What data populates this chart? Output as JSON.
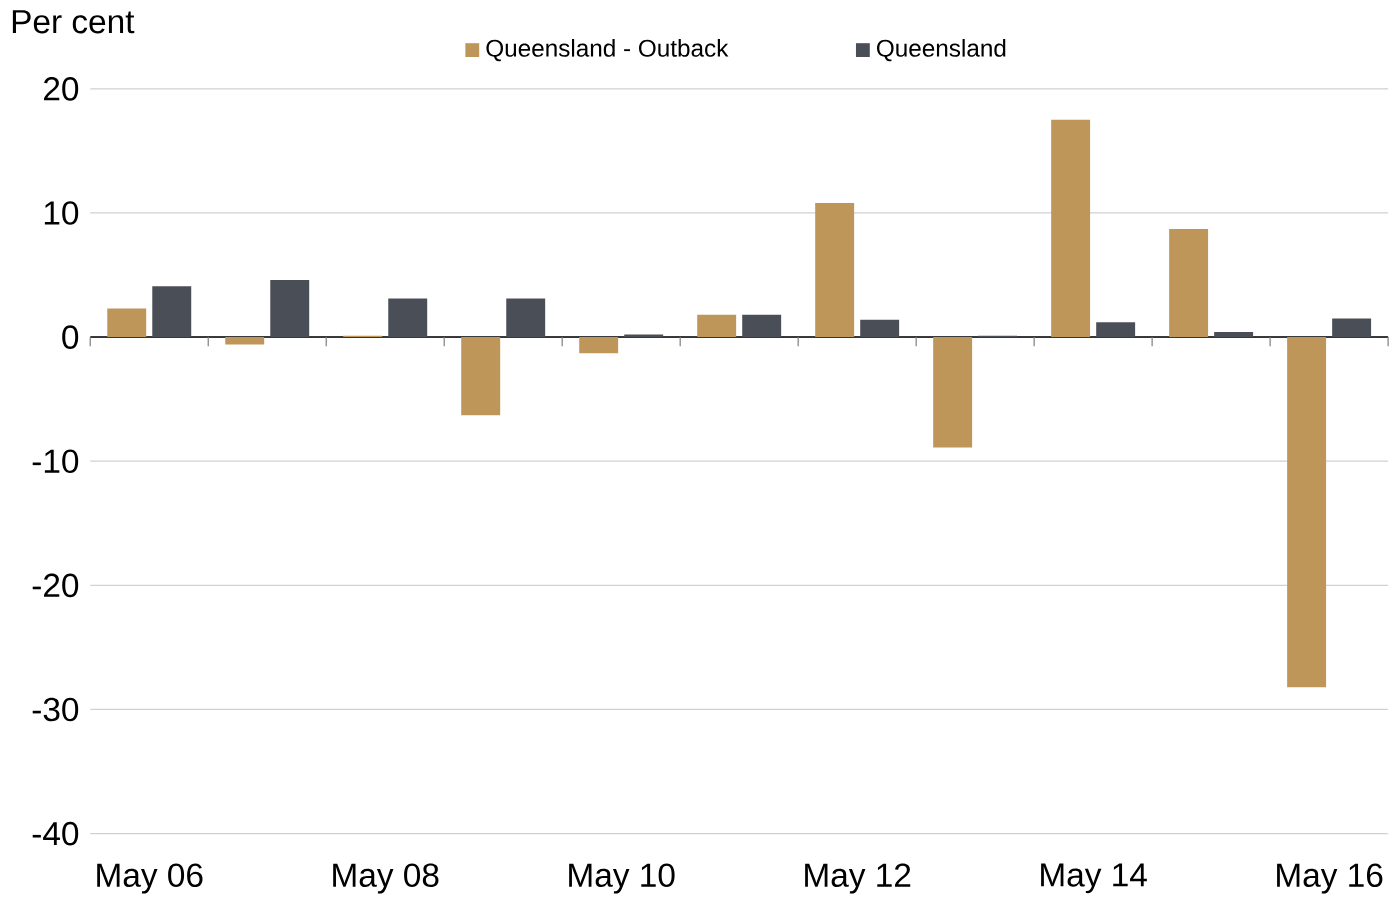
{
  "chart_data": {
    "type": "bar",
    "ylabel": "Per cent",
    "categories": [
      "May 06",
      null,
      "May 08",
      null,
      "May 10",
      null,
      "May 12",
      null,
      "May 14",
      null,
      "May 16"
    ],
    "series": [
      {
        "name": "Queensland - Outback",
        "color": "#be965a",
        "values": [
          2.3,
          -0.6,
          0.1,
          -6.3,
          -1.3,
          1.8,
          10.8,
          -8.9,
          17.5,
          8.7,
          -28.2
        ]
      },
      {
        "name": "Queensland",
        "color": "#4a4f57",
        "values": [
          4.1,
          4.6,
          3.1,
          3.1,
          0.2,
          1.8,
          1.4,
          0.1,
          1.2,
          0.4,
          1.5
        ]
      }
    ],
    "ylim": [
      -40,
      20
    ],
    "yticks": [
      -40,
      -30,
      -20,
      -10,
      0,
      10,
      20
    ],
    "grid": "y",
    "legend": "top"
  }
}
